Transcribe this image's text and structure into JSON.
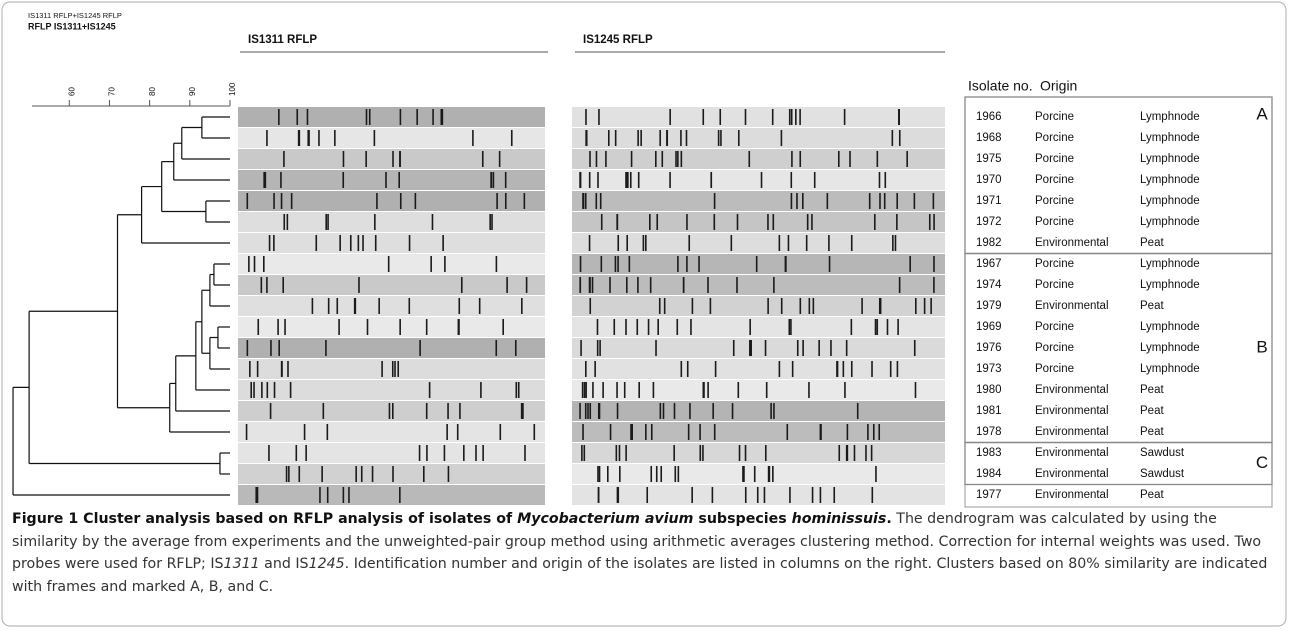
{
  "header": {
    "small_label": "IS1311 RFLP+IS1245 RFLP",
    "bold_label": "RFLP IS1311+IS1245",
    "gel1_title": "IS1311 RFLP",
    "gel2_title": "IS1245 RFLP"
  },
  "scale": {
    "xlim": [
      44,
      100
    ],
    "ticks": [
      60,
      70,
      80,
      90,
      100
    ]
  },
  "dendrogram": {
    "similarity": 46,
    "children": [
      {
        "similarity": 50,
        "children": [
          {
            "similarity": 72,
            "children": [
              {
                "similarity": 78,
                "children": [
                  {
                    "similarity": 83,
                    "children": [
                      {
                        "similarity": 86,
                        "children": [
                          {
                            "similarity": 88,
                            "children": [
                              {
                                "similarity": 93,
                                "children": [
                                  null,
                                  null
                                ]
                              },
                              null
                            ]
                          },
                          null
                        ]
                      },
                      {
                        "similarity": 94,
                        "children": [
                          null,
                          null
                        ]
                      }
                    ]
                  },
                  null
                ]
              },
              {
                "similarity": 85,
                "children": [
                  {
                    "similarity": 86.5,
                    "children": [
                      {
                        "similarity": 91.5,
                        "children": [
                          {
                            "similarity": 93,
                            "children": [
                              {
                                "similarity": 95,
                                "children": [
                                  {
                                    "similarity": 96,
                                    "children": [
                                      null,
                                      null
                                    ]
                                  },
                                  null
                                ]
                              },
                              {
                                "similarity": 95,
                                "children": [
                                  {
                                    "similarity": 97,
                                    "children": [
                                      null,
                                      null
                                    ]
                                  },
                                  null
                                ]
                              }
                            ]
                          },
                          null
                        ]
                      },
                      null
                    ]
                  },
                  null
                ]
              }
            ]
          },
          {
            "similarity": 97.5,
            "children": [
              null,
              null
            ]
          }
        ]
      },
      null
    ]
  },
  "table": {
    "headers": [
      "Isolate no.",
      "Origin"
    ],
    "groups": [
      {
        "label": "A",
        "rows": [
          [
            "1966",
            "Porcine",
            "Lymphnode"
          ],
          [
            "1968",
            "Porcine",
            "Lymphnode"
          ],
          [
            "1975",
            "Porcine",
            "Lymphnode"
          ],
          [
            "1970",
            "Porcine",
            "Lymphnode"
          ],
          [
            "1971",
            "Porcine",
            "Lymphnode"
          ],
          [
            "1972",
            "Porcine",
            "Lymphnode"
          ],
          [
            "1982",
            "Environmental",
            "Peat"
          ]
        ]
      },
      {
        "label": "B",
        "rows": [
          [
            "1967",
            "Porcine",
            "Lymphnode"
          ],
          [
            "1974",
            "Porcine",
            "Lymphnode"
          ],
          [
            "1979",
            "Environmental",
            "Peat"
          ],
          [
            "1969",
            "Porcine",
            "Lymphnode"
          ],
          [
            "1976",
            "Porcine",
            "Lymphnode"
          ],
          [
            "1973",
            "Porcine",
            "Lymphnode"
          ],
          [
            "1980",
            "Environmental",
            "Peat"
          ],
          [
            "1981",
            "Environmental",
            "Peat"
          ],
          [
            "1978",
            "Environmental",
            "Peat"
          ]
        ]
      },
      {
        "label": "C",
        "rows": [
          [
            "1983",
            "Environmental",
            "Sawdust"
          ],
          [
            "1984",
            "Environmental",
            "Sawdust"
          ]
        ]
      },
      {
        "rows": [
          [
            "1977",
            "Environmental",
            "Peat"
          ]
        ]
      }
    ]
  },
  "caption": [
    {
      "text": "Figure 1 Cluster analysis based on RFLP analysis of isolates of ",
      "style": "bold"
    },
    {
      "text": "Mycobacterium avium",
      "style": "bold-italic"
    },
    {
      "text": " subspecies ",
      "style": "bold"
    },
    {
      "text": "hominissuis",
      "style": "bold-italic"
    },
    {
      "text": ".",
      "style": "bold"
    },
    {
      "text": " The dendrogram was calculated by using the similarity by the average from experiments and the unweighted-pair group method using arithmetic averages clustering method. Correction for internal weights was used. Two probes were used for RFLP; IS",
      "style": "plain"
    },
    {
      "text": "1311",
      "style": "italic"
    },
    {
      "text": " and IS",
      "style": "plain"
    },
    {
      "text": "1245",
      "style": "italic"
    },
    {
      "text": ". Identification number and origin of the isolates are listed in columns on the right. Clusters based on 80% similarity are indicated with frames and marked A, B, and C.",
      "style": "plain"
    }
  ]
}
